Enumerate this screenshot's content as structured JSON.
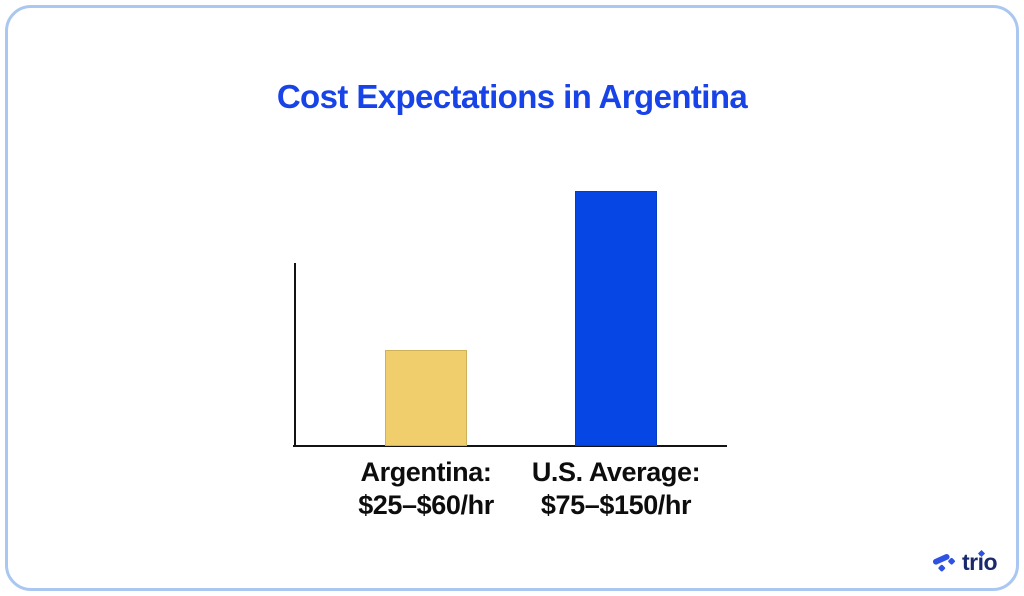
{
  "page": {
    "background": "#ffffff",
    "card_border_color": "#a9c7f1"
  },
  "chart_data": {
    "type": "bar",
    "title": "Cost Expectations in Argentina",
    "title_color": "#1743e8",
    "categories": [
      "Argentina: $25–$60/hr",
      "U.S. Average: $75–$150/hr"
    ],
    "tick_label_lines": [
      [
        "Argentina:",
        "$25–$60/hr"
      ],
      [
        "U.S. Average:",
        "$75–$150/hr"
      ]
    ],
    "series": [
      {
        "name": "hourly_rate_midpoint_usd",
        "values": [
          42.5,
          112.5
        ]
      }
    ],
    "ranges": [
      {
        "category": "Argentina",
        "min_usd_per_hr": 25,
        "max_usd_per_hr": 60
      },
      {
        "category": "U.S. Average",
        "min_usd_per_hr": 75,
        "max_usd_per_hr": 150
      }
    ],
    "xlabel": "",
    "ylabel": "",
    "ylim": [
      0,
      115
    ],
    "grid": false,
    "legend": "none",
    "bar_colors": [
      "#f0ce6b",
      "#0546e4"
    ],
    "axis_color": "#141414",
    "tick_label_color": "#0d0d0d"
  },
  "footer": {
    "logo_text": "trio",
    "logo_text_color": "#1a296b",
    "logo_icon_color": "#2d52e4",
    "logo_icon_name": "trio-diamond-mark-icon"
  }
}
